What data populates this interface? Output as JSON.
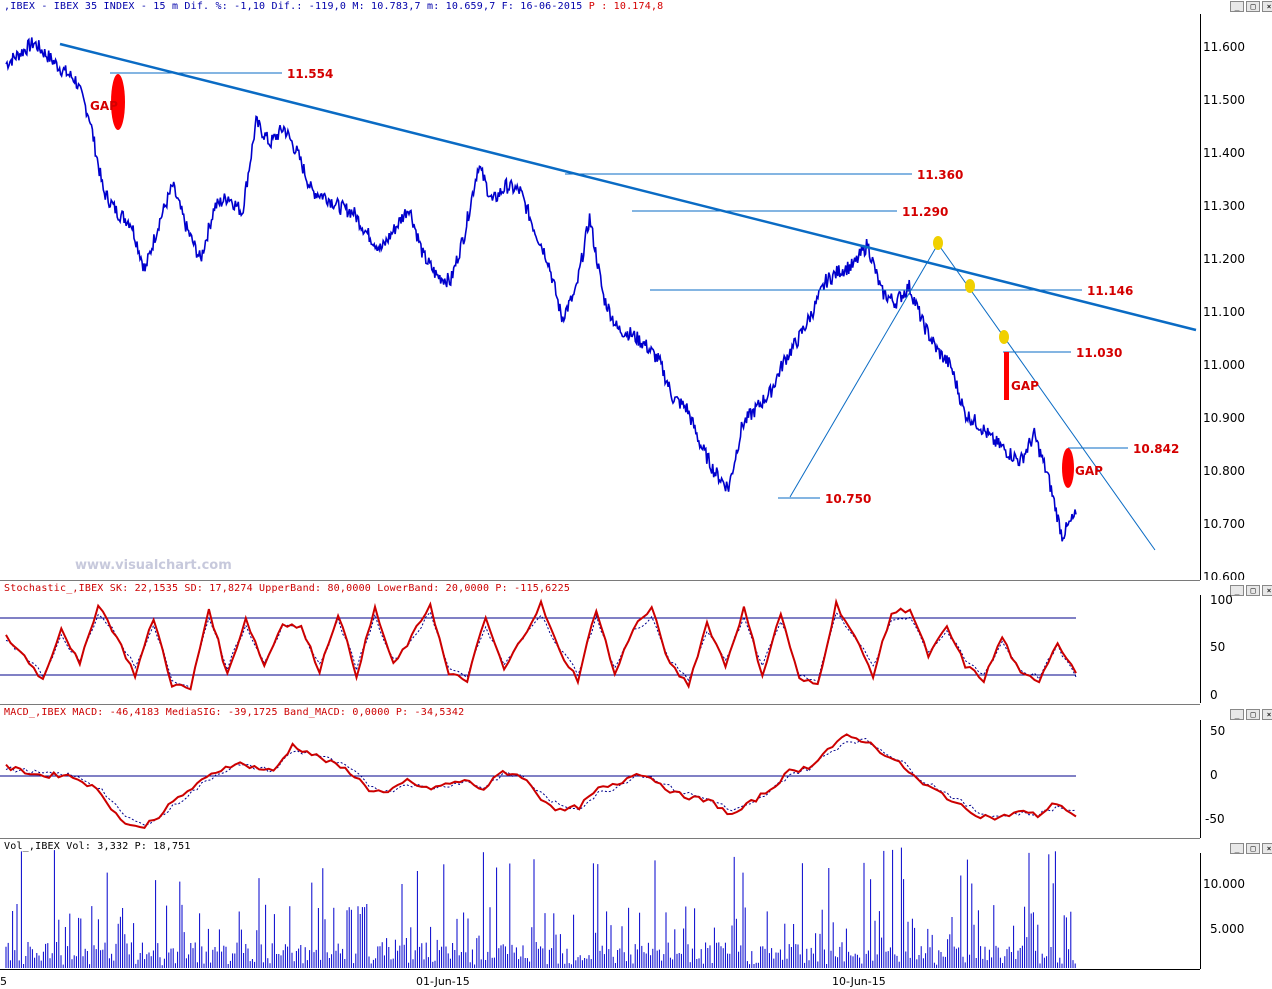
{
  "price_header": {
    "text": ",IBEX - IBEX 35 INDEX -  15 m Dif. %: -1,10 Dif.: -119,0 M: 10.783,7 m: 10.659,7 F: 16-06-2015",
    "last": "P : 10.174,8"
  },
  "stoch_header": "Stochastic_,IBEX SK: 22,1535 SD: 17,8274 UpperBand: 80,0000 LowerBand: 20,0000 P: -115,6225",
  "macd_header": "MACD_,IBEX MACD: -46,4183 MediaSIG: -39,1725 Band_MACD: 0,0000 P: -34,5342",
  "vol_header": "Vol_,IBEX Vol: 3,332 P: 18,751",
  "watermark": "www.visualchart.com",
  "window_buttons": [
    "_",
    "□",
    "×"
  ],
  "price_ticks": [
    "11.600",
    "11.500",
    "11.400",
    "11.300",
    "11.200",
    "11.100",
    "11.000",
    "10.900",
    "10.800",
    "10.700",
    "10.600"
  ],
  "stoch_ticks": [
    "100",
    "50",
    "0"
  ],
  "macd_ticks": [
    "50",
    "0",
    "-50"
  ],
  "vol_ticks": [
    "10.000",
    "5.000"
  ],
  "date_labels": [
    "5",
    "01-Jun-15",
    "10-Jun-15"
  ],
  "colors": {
    "price": "#0000cc",
    "trend": "#0a6bc4",
    "osc": "#cc0000",
    "gap": "#ff0000",
    "marker": "#f0d000",
    "band": "#00008b"
  },
  "chart_data": [
    {
      "type": "line",
      "title": "IBEX 35 INDEX 15 m",
      "ylim": [
        10600,
        11650
      ],
      "series": [
        {
          "name": "IBEX",
          "values": [
            11570,
            11590,
            11610,
            11585,
            11560,
            11540,
            11470,
            11330,
            11290,
            11270,
            11180,
            11270,
            11340,
            11260,
            11200,
            11300,
            11320,
            11290,
            11460,
            11420,
            11450,
            11400,
            11330,
            11320,
            11300,
            11290,
            11250,
            11220,
            11260,
            11300,
            11210,
            11170,
            11160,
            11250,
            11380,
            11310,
            11340,
            11330,
            11260,
            11200,
            11090,
            11140,
            11280,
            11130,
            11070,
            11060,
            11040,
            11010,
            10940,
            10920,
            10850,
            10800,
            10770,
            10890,
            10920,
            10950,
            11010,
            11050,
            11100,
            11160,
            11180,
            11190,
            11230,
            11140,
            11120,
            11150,
            11080,
            11030,
            11000,
            10910,
            10890,
            10860,
            10840,
            10820,
            10870,
            10790,
            10680,
            10720
          ]
        }
      ],
      "annotations": [
        "11.554",
        "11.360",
        "11.290",
        "11.146",
        "11.030",
        "10.842",
        "10.750",
        "GAP",
        "GAP",
        "GAP"
      ]
    },
    {
      "type": "line",
      "title": "Stochastic",
      "ylim": [
        0,
        100
      ],
      "bands": [
        80,
        20
      ],
      "series": [
        {
          "name": "SK",
          "values": [
            60,
            40,
            15,
            70,
            30,
            95,
            60,
            20,
            80,
            10,
            5,
            90,
            20,
            80,
            30,
            75,
            70,
            25,
            85,
            20,
            90,
            30,
            60,
            95,
            20,
            15,
            80,
            25,
            60,
            95,
            45,
            15,
            90,
            20,
            70,
            90,
            30,
            10,
            75,
            30,
            90,
            20,
            85,
            15,
            10,
            95,
            60,
            20,
            85,
            90,
            40,
            70,
            30,
            15,
            60,
            20,
            15,
            55,
            22
          ]
        },
        {
          "name": "SD",
          "values": [
            55,
            42,
            20,
            60,
            35,
            85,
            62,
            28,
            75,
            15,
            8,
            82,
            28,
            72,
            35,
            70,
            68,
            30,
            78,
            28,
            82,
            35,
            58,
            85,
            28,
            20,
            72,
            30,
            58,
            85,
            48,
            22,
            80,
            28,
            66,
            82,
            35,
            15,
            68,
            35,
            82,
            28,
            78,
            20,
            15,
            85,
            62,
            28,
            78,
            82,
            45,
            66,
            35,
            20,
            55,
            25,
            18,
            50,
            18
          ]
        }
      ]
    },
    {
      "type": "line",
      "title": "MACD",
      "ylim": [
        -70,
        60
      ],
      "series": [
        {
          "name": "MACD",
          "values": [
            10,
            5,
            0,
            2,
            -5,
            -20,
            -50,
            -60,
            -45,
            -25,
            -10,
            5,
            15,
            10,
            5,
            35,
            25,
            15,
            5,
            -15,
            -20,
            -5,
            -15,
            -10,
            -5,
            -15,
            5,
            0,
            -25,
            -40,
            -35,
            -15,
            -10,
            5,
            -5,
            -20,
            -25,
            -30,
            -45,
            -30,
            -15,
            5,
            10,
            30,
            45,
            40,
            25,
            10,
            -10,
            -20,
            -35,
            -45,
            -48,
            -40,
            -45,
            -30,
            -46
          ]
        },
        {
          "name": "MediaSIG",
          "values": [
            8,
            6,
            2,
            2,
            -3,
            -15,
            -42,
            -55,
            -48,
            -30,
            -14,
            2,
            12,
            10,
            6,
            28,
            26,
            18,
            8,
            -10,
            -18,
            -8,
            -14,
            -11,
            -6,
            -13,
            2,
            0,
            -20,
            -35,
            -36,
            -20,
            -12,
            2,
            -3,
            -16,
            -22,
            -28,
            -40,
            -33,
            -18,
            2,
            8,
            25,
            40,
            40,
            28,
            14,
            -5,
            -16,
            -30,
            -42,
            -46,
            -42,
            -44,
            -35,
            -39
          ]
        }
      ]
    },
    {
      "type": "bar",
      "title": "Volume",
      "ylim": [
        0,
        13000
      ],
      "series": [
        {
          "name": "Vol",
          "values": [
            3332
          ]
        }
      ]
    }
  ]
}
